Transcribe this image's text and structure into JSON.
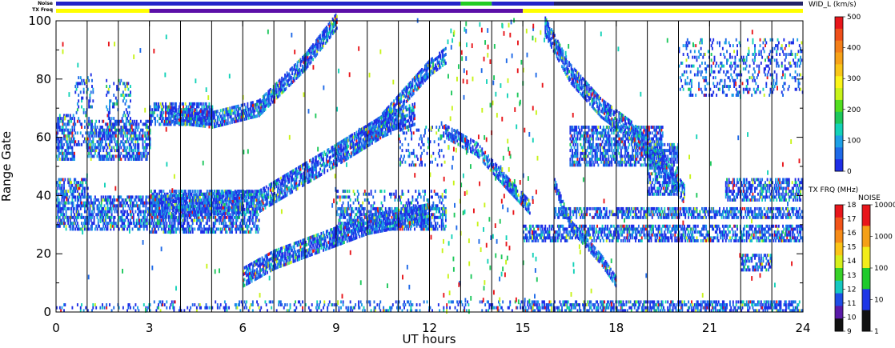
{
  "chart_data": {
    "type": "heatmap",
    "xlabel": "UT hours",
    "ylabel": "Range Gate",
    "xlim": [
      0,
      24
    ],
    "ylim": [
      0,
      100
    ],
    "x_ticks": [
      "0",
      "3",
      "6",
      "9",
      "12",
      "15",
      "18",
      "21",
      "24"
    ],
    "y_ticks": [
      "0",
      "20",
      "40",
      "60",
      "80",
      "100"
    ],
    "vertical_lines_hours": [
      1,
      2,
      3,
      4,
      5,
      6,
      7,
      8,
      9,
      10,
      11,
      12,
      13,
      14,
      15,
      16,
      17,
      18,
      19,
      20,
      21,
      22,
      23
    ],
    "top_strips": {
      "noise_label": "Noise",
      "txfreq_label": "TX Freq",
      "txfreq_segments": [
        {
          "start": 0,
          "end": 3,
          "color": "#ffff00"
        },
        {
          "start": 3,
          "end": 15,
          "color": "#5b0fa8"
        },
        {
          "start": 15,
          "end": 24,
          "color": "#ffff00"
        }
      ],
      "noise_segments": [
        {
          "start": 0,
          "end": 13,
          "color": "#2323c8"
        },
        {
          "start": 13,
          "end": 14,
          "color": "#22cc22"
        },
        {
          "start": 14,
          "end": 16,
          "color": "#2323c8"
        },
        {
          "start": 16,
          "end": 24,
          "color": "#222266"
        }
      ]
    },
    "echo_bands": [
      {
        "x0": 0.0,
        "x1": 3.0,
        "y0": 28,
        "y1": 40,
        "kind": "dense"
      },
      {
        "x0": 0.0,
        "x1": 1.0,
        "y0": 40,
        "y1": 46,
        "kind": "dense"
      },
      {
        "x0": 1.0,
        "x1": 3.0,
        "y0": 52,
        "y1": 66,
        "kind": "dense"
      },
      {
        "x0": 0.0,
        "x1": 0.6,
        "y0": 52,
        "y1": 68,
        "kind": "dense"
      },
      {
        "x0": 0.6,
        "x1": 1.2,
        "y0": 56,
        "y1": 82,
        "kind": "sparse"
      },
      {
        "x0": 1.6,
        "x1": 2.4,
        "y0": 60,
        "y1": 80,
        "kind": "sparse"
      },
      {
        "x0": 3.0,
        "x1": 6.5,
        "y0": 27,
        "y1": 42,
        "kind": "dense"
      },
      {
        "x0": 3.0,
        "x1": 5.0,
        "y0": 64,
        "y1": 72,
        "kind": "dense"
      },
      {
        "x0": 3.0,
        "x1": 15.0,
        "y0": 0,
        "y1": 4,
        "kind": "sparse"
      },
      {
        "x0": 15.0,
        "x1": 24.0,
        "y0": 0,
        "y1": 4,
        "kind": "dense"
      },
      {
        "x0": 0.0,
        "x1": 3.0,
        "y0": 0,
        "y1": 3,
        "kind": "sparse"
      },
      {
        "x0": 9.0,
        "x1": 12.5,
        "y0": 28,
        "y1": 36,
        "kind": "dense"
      },
      {
        "x0": 9.0,
        "x1": 12.5,
        "y0": 36,
        "y1": 42,
        "kind": "sparse"
      },
      {
        "x0": 15.0,
        "x1": 24.0,
        "y0": 24,
        "y1": 30,
        "kind": "dense"
      },
      {
        "x0": 16.0,
        "x1": 24.0,
        "y0": 32,
        "y1": 36,
        "kind": "dense"
      },
      {
        "x0": 21.5,
        "x1": 24.0,
        "y0": 38,
        "y1": 46,
        "kind": "dense"
      },
      {
        "x0": 22.0,
        "x1": 23.0,
        "y0": 14,
        "y1": 20,
        "kind": "dense"
      },
      {
        "x0": 16.5,
        "x1": 19.5,
        "y0": 50,
        "y1": 64,
        "kind": "dense"
      },
      {
        "x0": 19.0,
        "x1": 20.0,
        "y0": 40,
        "y1": 58,
        "kind": "dense"
      },
      {
        "x0": 11.0,
        "x1": 12.5,
        "y0": 50,
        "y1": 64,
        "kind": "sparse"
      },
      {
        "x0": 20.0,
        "x1": 24.0,
        "y0": 74,
        "y1": 94,
        "kind": "sparse"
      }
    ],
    "echo_tracks": [
      {
        "points": [
          [
            3.0,
            36
          ],
          [
            6.5,
            38
          ],
          [
            9.0,
            54
          ],
          [
            10.5,
            64
          ],
          [
            11.5,
            68
          ]
        ],
        "width": 8
      },
      {
        "points": [
          [
            6.0,
            12
          ],
          [
            7.0,
            18
          ],
          [
            9.0,
            26
          ],
          [
            10.0,
            30
          ],
          [
            12.0,
            34
          ]
        ],
        "width": 7
      },
      {
        "points": [
          [
            3.5,
            68
          ],
          [
            5.0,
            66
          ],
          [
            6.5,
            70
          ],
          [
            8.0,
            86
          ],
          [
            9.0,
            100
          ]
        ],
        "width": 6
      },
      {
        "points": [
          [
            10.0,
            60
          ],
          [
            11.0,
            72
          ],
          [
            12.0,
            84
          ],
          [
            12.5,
            88
          ]
        ],
        "width": 6
      },
      {
        "points": [
          [
            15.7,
            98
          ],
          [
            16.5,
            82
          ],
          [
            17.5,
            70
          ],
          [
            18.5,
            62
          ],
          [
            19.5,
            50
          ],
          [
            20.2,
            40
          ]
        ],
        "width": 7
      },
      {
        "points": [
          [
            12.5,
            62
          ],
          [
            13.5,
            56
          ],
          [
            14.5,
            44
          ],
          [
            15.2,
            36
          ]
        ],
        "width": 5
      },
      {
        "points": [
          [
            16.0,
            44
          ],
          [
            16.5,
            30
          ],
          [
            17.5,
            18
          ],
          [
            18.0,
            10
          ]
        ],
        "width": 4
      }
    ],
    "colorbars": {
      "width": {
        "title": "WID_L (km/s)",
        "ticks": [
          "500",
          "400",
          "300",
          "200",
          "100",
          "0"
        ],
        "colors": [
          "#e8161b",
          "#ef4f1a",
          "#f47f19",
          "#f7a218",
          "#f9c618",
          "#fbf519",
          "#c8f31a",
          "#52de20",
          "#1ec85c",
          "#14d2b8",
          "#1ea0e6",
          "#1f6ae8",
          "#1e2ee6"
        ]
      },
      "txfreq": {
        "title": "TX FRQ (MHz)",
        "ticks": [
          "18",
          "17",
          "16",
          "15",
          "14",
          "13",
          "12",
          "11",
          "10",
          "9"
        ],
        "colors": [
          "#e8161b",
          "#f25419",
          "#f78c18",
          "#fbc418",
          "#d6ef1b",
          "#38d229",
          "#15c8c1",
          "#1f4ee6",
          "#5a1aa8",
          "#111111"
        ]
      },
      "noise": {
        "title": "NOISE",
        "ticks": [
          "10000",
          "1000",
          "100",
          "10",
          "1"
        ],
        "colors": [
          "#e8161b",
          "#f4a018",
          "#f2ec1a",
          "#1fca2c",
          "#1e36e6",
          "#111111"
        ]
      }
    }
  }
}
